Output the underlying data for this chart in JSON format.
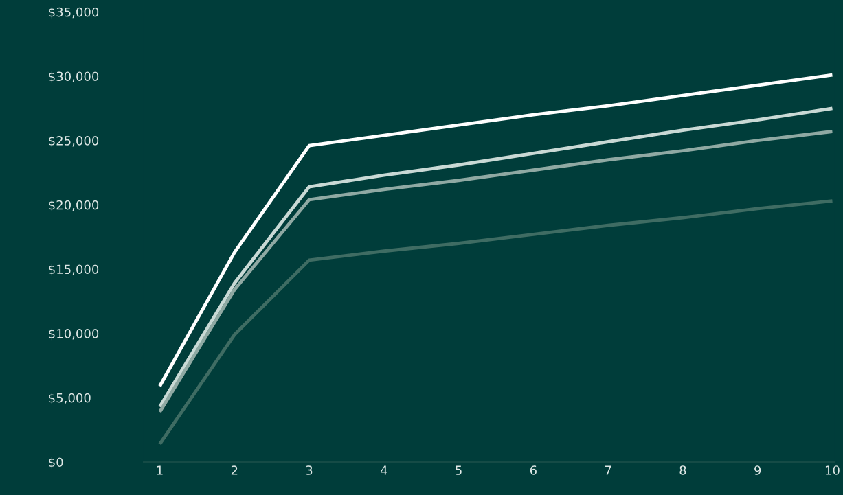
{
  "chart_data": {
    "type": "line",
    "categories": [
      "1",
      "2",
      "3",
      "4",
      "5",
      "6",
      "7",
      "8",
      "9",
      "10"
    ],
    "series": [
      {
        "color": "#ffffff",
        "values": [
          5900,
          16300,
          24600,
          25400,
          26200,
          27000,
          27700,
          28500,
          29300,
          30100
        ]
      },
      {
        "color": "#c9d9d5",
        "values": [
          4300,
          13900,
          21400,
          22300,
          23100,
          24000,
          24900,
          25800,
          26600,
          27500
        ]
      },
      {
        "color": "#8fa9a3",
        "values": [
          3900,
          13400,
          20400,
          21200,
          21900,
          22700,
          23500,
          24200,
          25000,
          25700
        ]
      },
      {
        "color": "#3f6c63",
        "values": [
          1400,
          9900,
          15700,
          16400,
          17000,
          17700,
          18400,
          19000,
          19700,
          20300
        ]
      }
    ],
    "ylim": [
      0,
      35000
    ],
    "yticks": [
      {
        "value": 0,
        "label": "$0"
      },
      {
        "value": 5000,
        "label": "$5,000"
      },
      {
        "value": 10000,
        "label": "$10,000"
      },
      {
        "value": 15000,
        "label": "$15,000"
      },
      {
        "value": 20000,
        "label": "$20,000"
      },
      {
        "value": 25000,
        "label": "$25,000"
      },
      {
        "value": 30000,
        "label": "$30,000"
      },
      {
        "value": 35000,
        "label": "$35,000"
      }
    ],
    "grid": false,
    "legend": false,
    "marker": "none",
    "line_style": "solid"
  }
}
